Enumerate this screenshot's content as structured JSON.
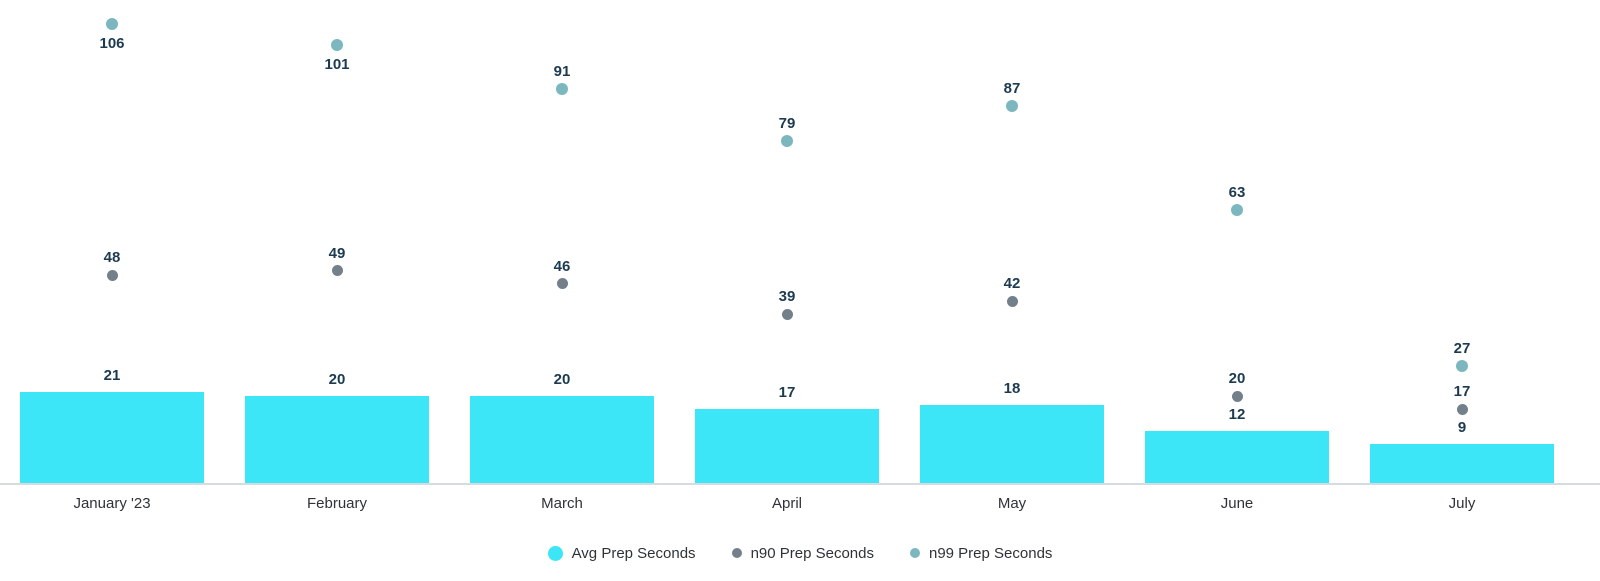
{
  "chart_data": {
    "type": "bar",
    "title": "",
    "xlabel": "",
    "ylabel": "",
    "categories": [
      "January '23",
      "February",
      "March",
      "April",
      "May",
      "June",
      "July"
    ],
    "series": [
      {
        "name": "Avg Prep Seconds",
        "render": "bar",
        "color": "#3CE6F7",
        "values": [
          21,
          20,
          20,
          17,
          18,
          12,
          9
        ]
      },
      {
        "name": "n90 Prep Seconds",
        "render": "scatter",
        "color": "#73808A",
        "values": [
          48,
          49,
          46,
          39,
          42,
          20,
          17
        ]
      },
      {
        "name": "n99 Prep Seconds",
        "render": "scatter",
        "color": "#7CB7BF",
        "values": [
          106,
          101,
          91,
          79,
          87,
          63,
          27
        ],
        "label_below": [
          true,
          true,
          false,
          false,
          false,
          false,
          false
        ]
      }
    ],
    "ylim": [
      0,
      112
    ],
    "grid": false,
    "data_labels": true,
    "legend_position": "bottom",
    "colors": {
      "value_label": "#1C3B50",
      "axis_label": "#2F3338",
      "legend_label": "#2F3338",
      "axis_line": "#D6DBE2",
      "background": "#FFFFFF"
    }
  }
}
